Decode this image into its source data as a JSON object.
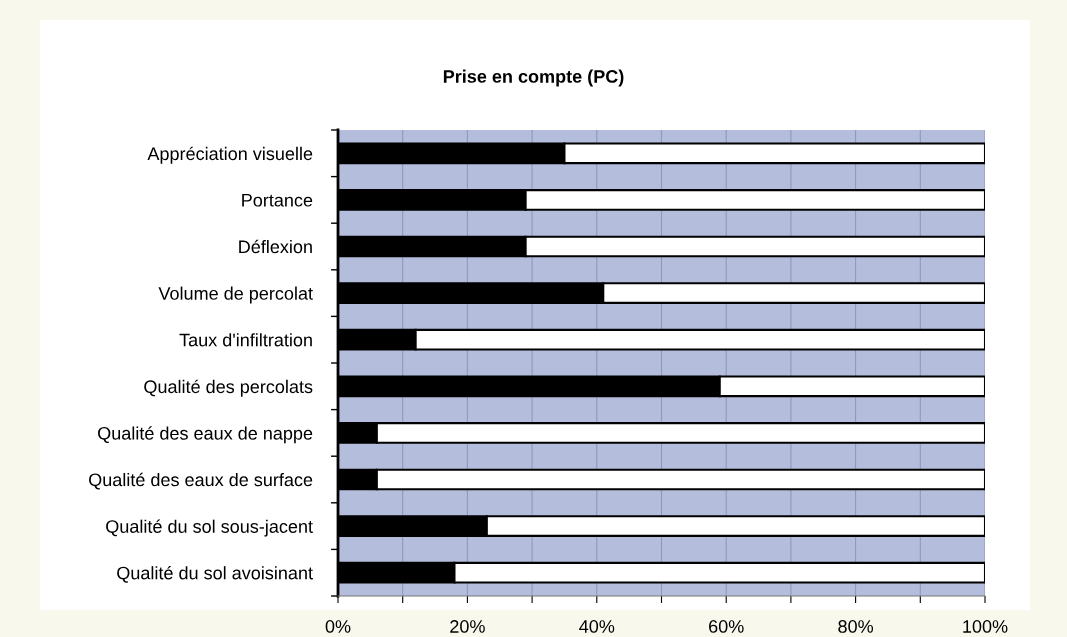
{
  "chart_data": {
    "type": "bar",
    "title": "Prise en compte (PC)",
    "orientation": "horizontal",
    "stacked": true,
    "categories": [
      "Appréciation visuelle",
      "Portance",
      "Déflexion",
      "Volume de percolat",
      "Taux d'infiltration",
      "Qualité des percolats",
      "Qualité des eaux de nappe",
      "Qualité des eaux de surface",
      "Qualité du sol sous-jacent",
      "Qualité du sol avoisinant"
    ],
    "series": [
      {
        "color": "#000000",
        "values": [
          35,
          29,
          29,
          41,
          12,
          59,
          6,
          6,
          23,
          18
        ]
      },
      {
        "color": "#ffffff",
        "values": [
          65,
          71,
          71,
          59,
          88,
          41,
          94,
          94,
          77,
          82
        ]
      }
    ],
    "xlim": [
      0,
      100
    ],
    "xticks": [
      {
        "value": 0,
        "label": "0%"
      },
      {
        "value": 10,
        "label": null
      },
      {
        "value": 20,
        "label": "20%"
      },
      {
        "value": 30,
        "label": null
      },
      {
        "value": 40,
        "label": "40%"
      },
      {
        "value": 50,
        "label": null
      },
      {
        "value": 60,
        "label": "60%"
      },
      {
        "value": 70,
        "label": null
      },
      {
        "value": 80,
        "label": "80%"
      },
      {
        "value": 90,
        "label": null
      },
      {
        "value": 100,
        "label": "100%"
      }
    ],
    "grid": "x",
    "legend": false
  }
}
